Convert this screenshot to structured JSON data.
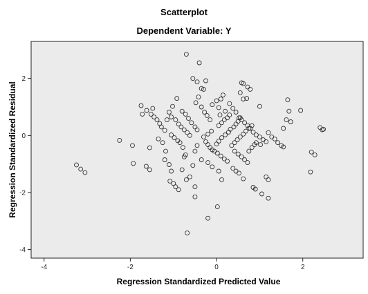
{
  "chart_data": {
    "type": "scatter",
    "title": "Scatterplot",
    "subtitle": "Dependent Variable: Y",
    "xlabel": "Regression Standardized Predicted Value",
    "ylabel": "Regression Standardized Residual",
    "xlim": [
      -4.3,
      3.4
    ],
    "ylim": [
      -4.3,
      3.3
    ],
    "xticks": [
      -4,
      -2,
      0,
      2
    ],
    "yticks": [
      -4,
      -2,
      0,
      2
    ],
    "grid": false,
    "plot_background": "#ebebeb",
    "marker_color": "#333333",
    "points": [
      [
        -3.25,
        -1.03
      ],
      [
        -3.15,
        -1.18
      ],
      [
        -3.05,
        -1.3
      ],
      [
        -2.25,
        -0.17
      ],
      [
        -1.95,
        -0.35
      ],
      [
        -1.93,
        -0.98
      ],
      [
        -1.63,
        -1.08
      ],
      [
        -1.55,
        -1.2
      ],
      [
        -1.55,
        -0.43
      ],
      [
        -1.75,
        1.05
      ],
      [
        -1.62,
        0.88
      ],
      [
        -1.52,
        0.75
      ],
      [
        -1.45,
        0.65
      ],
      [
        -1.38,
        0.55
      ],
      [
        -1.32,
        0.42
      ],
      [
        -1.72,
        0.75
      ],
      [
        -1.48,
        0.95
      ],
      [
        -1.28,
        0.3
      ],
      [
        -1.2,
        0.18
      ],
      [
        -1.35,
        -0.12
      ],
      [
        -1.25,
        -0.25
      ],
      [
        -1.18,
        -0.55
      ],
      [
        -1.2,
        -0.85
      ],
      [
        -1.1,
        -1.02
      ],
      [
        -1.05,
        -1.25
      ],
      [
        -1.08,
        -1.6
      ],
      [
        -1.0,
        -1.68
      ],
      [
        -0.95,
        -1.8
      ],
      [
        -0.88,
        -1.9
      ],
      [
        -1.05,
        0.02
      ],
      [
        -0.98,
        -0.08
      ],
      [
        -0.9,
        -0.18
      ],
      [
        -0.85,
        -0.25
      ],
      [
        -0.78,
        -0.42
      ],
      [
        -0.72,
        -0.68
      ],
      [
        -1.15,
        0.55
      ],
      [
        -1.05,
        0.65
      ],
      [
        -0.95,
        0.55
      ],
      [
        -0.88,
        0.4
      ],
      [
        -0.82,
        0.3
      ],
      [
        -0.75,
        0.2
      ],
      [
        -0.68,
        0.1
      ],
      [
        -0.62,
        0.0
      ],
      [
        -1.1,
        0.82
      ],
      [
        -1.02,
        1.02
      ],
      [
        -0.92,
        1.3
      ],
      [
        -0.8,
        0.85
      ],
      [
        -0.72,
        0.75
      ],
      [
        -0.65,
        0.6
      ],
      [
        -0.58,
        0.45
      ],
      [
        -0.5,
        0.3
      ],
      [
        -0.45,
        0.2
      ],
      [
        -0.7,
        2.85
      ],
      [
        -0.55,
        2.0
      ],
      [
        -0.45,
        1.88
      ],
      [
        -0.4,
        2.55
      ],
      [
        -0.35,
        1.65
      ],
      [
        -0.42,
        1.35
      ],
      [
        -0.48,
        1.15
      ],
      [
        -0.35,
        1.0
      ],
      [
        -0.28,
        0.82
      ],
      [
        -0.22,
        0.7
      ],
      [
        -0.15,
        0.55
      ],
      [
        -0.25,
        1.92
      ],
      [
        -0.3,
        1.62
      ],
      [
        -0.75,
        -0.75
      ],
      [
        -0.8,
        -1.2
      ],
      [
        -0.7,
        -1.55
      ],
      [
        -0.62,
        -1.45
      ],
      [
        -0.5,
        -1.8
      ],
      [
        -0.5,
        -2.15
      ],
      [
        -0.68,
        -3.42
      ],
      [
        -0.55,
        -1.05
      ],
      [
        -0.5,
        -0.55
      ],
      [
        -0.45,
        -0.35
      ],
      [
        -0.25,
        -0.22
      ],
      [
        -0.2,
        -0.32
      ],
      [
        -0.15,
        -0.42
      ],
      [
        -0.1,
        -0.5
      ],
      [
        -0.05,
        -0.55
      ],
      [
        0.02,
        -0.62
      ],
      [
        0.1,
        -0.72
      ],
      [
        0.18,
        -0.82
      ],
      [
        0.25,
        -0.9
      ],
      [
        -0.35,
        -0.85
      ],
      [
        -0.2,
        -0.95
      ],
      [
        -0.1,
        -1.1
      ],
      [
        0.05,
        -1.25
      ],
      [
        0.12,
        -1.55
      ],
      [
        -0.2,
        -2.9
      ],
      [
        0.02,
        -2.5
      ],
      [
        -0.3,
        -0.05
      ],
      [
        -0.2,
        0.05
      ],
      [
        -0.12,
        0.15
      ],
      [
        0.05,
        0.35
      ],
      [
        0.12,
        0.45
      ],
      [
        0.18,
        0.55
      ],
      [
        0.25,
        0.62
      ],
      [
        0.3,
        0.72
      ],
      [
        -0.1,
        1.08
      ],
      [
        0.0,
        1.22
      ],
      [
        0.1,
        1.28
      ],
      [
        0.15,
        1.42
      ],
      [
        0.05,
        0.98
      ],
      [
        0.2,
        0.85
      ],
      [
        0.08,
        0.72
      ],
      [
        0.0,
        -0.3
      ],
      [
        0.05,
        -0.2
      ],
      [
        0.12,
        -0.08
      ],
      [
        0.2,
        0.02
      ],
      [
        0.28,
        0.12
      ],
      [
        0.32,
        0.22
      ],
      [
        0.4,
        0.3
      ],
      [
        0.45,
        0.4
      ],
      [
        0.5,
        0.5
      ],
      [
        0.55,
        0.62
      ],
      [
        0.35,
        -0.35
      ],
      [
        0.42,
        -0.25
      ],
      [
        0.48,
        -0.15
      ],
      [
        0.55,
        -0.05
      ],
      [
        0.62,
        0.05
      ],
      [
        0.68,
        0.15
      ],
      [
        0.75,
        0.25
      ],
      [
        0.82,
        0.35
      ],
      [
        0.3,
        1.12
      ],
      [
        0.38,
        0.95
      ],
      [
        0.45,
        0.82
      ],
      [
        0.52,
        0.62
      ],
      [
        0.58,
        0.55
      ],
      [
        0.65,
        0.45
      ],
      [
        0.72,
        0.35
      ],
      [
        0.78,
        0.25
      ],
      [
        0.55,
        1.5
      ],
      [
        0.58,
        1.85
      ],
      [
        0.62,
        1.82
      ],
      [
        0.72,
        1.7
      ],
      [
        0.78,
        1.62
      ],
      [
        0.7,
        1.3
      ],
      [
        0.62,
        1.28
      ],
      [
        0.42,
        -0.55
      ],
      [
        0.5,
        -0.65
      ],
      [
        0.58,
        -0.75
      ],
      [
        0.65,
        -0.85
      ],
      [
        0.72,
        -0.95
      ],
      [
        0.75,
        -0.55
      ],
      [
        0.82,
        -0.42
      ],
      [
        0.88,
        -0.32
      ],
      [
        0.92,
        -0.25
      ],
      [
        0.38,
        -1.15
      ],
      [
        0.45,
        -1.25
      ],
      [
        0.52,
        -1.32
      ],
      [
        0.62,
        -1.52
      ],
      [
        0.85,
        -1.82
      ],
      [
        0.9,
        -1.88
      ],
      [
        1.05,
        -2.05
      ],
      [
        1.15,
        -1.45
      ],
      [
        1.2,
        -1.55
      ],
      [
        1.2,
        -2.2
      ],
      [
        0.85,
        0.12
      ],
      [
        0.92,
        0.02
      ],
      [
        1.0,
        -0.05
      ],
      [
        1.08,
        -0.15
      ],
      [
        1.15,
        -0.22
      ],
      [
        1.02,
        -0.32
      ],
      [
        1.2,
        0.1
      ],
      [
        1.28,
        -0.05
      ],
      [
        1.35,
        -0.12
      ],
      [
        1.42,
        -0.25
      ],
      [
        1.5,
        -0.35
      ],
      [
        1.55,
        -0.4
      ],
      [
        1.0,
        1.02
      ],
      [
        1.55,
        0.25
      ],
      [
        1.62,
        0.55
      ],
      [
        1.68,
        0.85
      ],
      [
        1.65,
        1.25
      ],
      [
        1.72,
        0.48
      ],
      [
        1.95,
        0.88
      ],
      [
        2.2,
        -0.58
      ],
      [
        2.18,
        -1.28
      ],
      [
        2.28,
        -0.68
      ],
      [
        2.4,
        0.28
      ],
      [
        2.45,
        0.2
      ],
      [
        2.48,
        0.22
      ]
    ]
  }
}
